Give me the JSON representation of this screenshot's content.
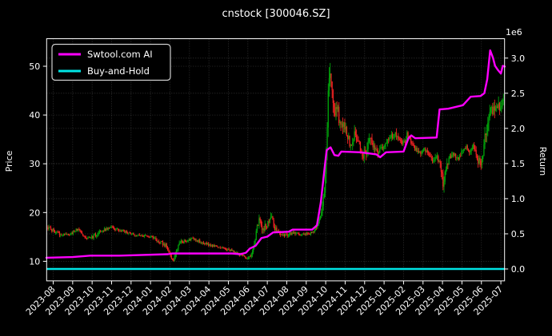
{
  "window": {
    "title": "cnstock [300046.SZ]"
  },
  "chart_data": {
    "type": "candlestick",
    "title": "cnstock [300046.SZ]",
    "ylabel_left": "Price",
    "ylabel_right": "Return",
    "right_axis_offset_text": "1e6",
    "x_tick_labels": [
      "2023-08",
      "2023-09",
      "2023-10",
      "2023-11",
      "2023-12",
      "2024-01",
      "2024-02",
      "2024-03",
      "2024-04",
      "2024-05",
      "2024-06",
      "2024-07",
      "2024-08",
      "2024-09",
      "2024-10",
      "2024-11",
      "2024-12",
      "2025-01",
      "2025-02",
      "2025-03",
      "2025-04",
      "2025-05",
      "2025-06",
      "2025-07"
    ],
    "price_ticks": [
      10,
      20,
      30,
      40,
      50
    ],
    "return_ticks_1e6": [
      0.0,
      0.5,
      1.0,
      1.5,
      2.0,
      2.5,
      3.0
    ],
    "price_ylim": [
      6.0,
      55.6
    ],
    "return_ylim_1e6": [
      -0.17,
      3.28
    ],
    "grid": true,
    "legend_position": "upper left",
    "candle_colors": {
      "up": "#00a30a",
      "down": "#ee2222"
    },
    "series": [
      {
        "name": "Swtool.com AI",
        "color": "#ff00ff",
        "axis": "return_1e6",
        "points": [
          [
            -0.35,
            0.16
          ],
          [
            1.0,
            0.17
          ],
          [
            1.9,
            0.19
          ],
          [
            3.4,
            0.19
          ],
          [
            5.9,
            0.21
          ],
          [
            6.1,
            0.22
          ],
          [
            9.2,
            0.22
          ],
          [
            9.6,
            0.21
          ],
          [
            9.9,
            0.23
          ],
          [
            10.1,
            0.29
          ],
          [
            10.4,
            0.33
          ],
          [
            10.7,
            0.44
          ],
          [
            11.0,
            0.46
          ],
          [
            11.3,
            0.52
          ],
          [
            12.1,
            0.53
          ],
          [
            12.3,
            0.56
          ],
          [
            13.3,
            0.56
          ],
          [
            13.55,
            0.62
          ],
          [
            13.75,
            0.95
          ],
          [
            13.95,
            1.45
          ],
          [
            14.05,
            1.69
          ],
          [
            14.25,
            1.73
          ],
          [
            14.45,
            1.62
          ],
          [
            14.65,
            1.61
          ],
          [
            14.8,
            1.67
          ],
          [
            15.8,
            1.66
          ],
          [
            16.6,
            1.63
          ],
          [
            16.8,
            1.59
          ],
          [
            17.1,
            1.66
          ],
          [
            18.0,
            1.67
          ],
          [
            18.25,
            1.86
          ],
          [
            18.4,
            1.9
          ],
          [
            18.6,
            1.86
          ],
          [
            19.7,
            1.87
          ],
          [
            19.85,
            2.27
          ],
          [
            20.3,
            2.28
          ],
          [
            21.05,
            2.33
          ],
          [
            21.45,
            2.45
          ],
          [
            21.95,
            2.46
          ],
          [
            22.15,
            2.5
          ],
          [
            22.3,
            2.7
          ],
          [
            22.45,
            3.11
          ],
          [
            22.6,
            3.0
          ],
          [
            22.7,
            2.89
          ],
          [
            22.85,
            2.83
          ],
          [
            23.0,
            2.78
          ],
          [
            23.1,
            2.89
          ],
          [
            23.2,
            2.88
          ]
        ]
      },
      {
        "name": "Buy-and-Hold",
        "color": "#00e5e5",
        "axis": "return_1e6",
        "points": [
          [
            -0.35,
            0.0
          ],
          [
            23.2,
            0.0
          ]
        ]
      }
    ],
    "price_close_keypoints": [
      [
        -0.3,
        17.0,
        0.9
      ],
      [
        0.0,
        16.3,
        0.8
      ],
      [
        0.3,
        15.6,
        0.7
      ],
      [
        0.7,
        15.3,
        0.7
      ],
      [
        1.0,
        16.0,
        0.8
      ],
      [
        1.3,
        16.6,
        0.7
      ],
      [
        1.6,
        15.2,
        0.7
      ],
      [
        1.9,
        14.8,
        0.7
      ],
      [
        2.3,
        15.6,
        0.8
      ],
      [
        2.6,
        16.4,
        0.8
      ],
      [
        3.0,
        16.9,
        0.7
      ],
      [
        3.4,
        16.3,
        0.6
      ],
      [
        3.8,
        16.0,
        0.6
      ],
      [
        4.2,
        15.5,
        0.6
      ],
      [
        4.6,
        15.2,
        0.5
      ],
      [
        5.0,
        15.0,
        0.6
      ],
      [
        5.4,
        14.2,
        0.7
      ],
      [
        5.8,
        13.2,
        0.8
      ],
      [
        6.0,
        11.0,
        1.2
      ],
      [
        6.15,
        9.8,
        1.0
      ],
      [
        6.3,
        12.0,
        1.3
      ],
      [
        6.5,
        13.8,
        0.9
      ],
      [
        6.8,
        14.2,
        0.7
      ],
      [
        7.2,
        14.6,
        0.7
      ],
      [
        7.6,
        14.0,
        0.6
      ],
      [
        8.0,
        13.4,
        0.6
      ],
      [
        8.4,
        13.0,
        0.5
      ],
      [
        8.8,
        12.6,
        0.5
      ],
      [
        9.2,
        12.2,
        0.5
      ],
      [
        9.5,
        11.6,
        0.6
      ],
      [
        9.8,
        11.0,
        0.6
      ],
      [
        10.0,
        10.5,
        0.5
      ],
      [
        10.2,
        11.5,
        1.0
      ],
      [
        10.45,
        16.0,
        2.0
      ],
      [
        10.6,
        19.5,
        1.8
      ],
      [
        10.75,
        16.5,
        1.5
      ],
      [
        11.0,
        17.5,
        1.5
      ],
      [
        11.2,
        19.0,
        1.6
      ],
      [
        11.4,
        16.5,
        1.2
      ],
      [
        11.7,
        15.5,
        0.9
      ],
      [
        12.0,
        15.5,
        0.8
      ],
      [
        12.4,
        16.0,
        0.9
      ],
      [
        12.7,
        15.3,
        0.7
      ],
      [
        13.0,
        15.6,
        0.6
      ],
      [
        13.3,
        15.8,
        0.8
      ],
      [
        13.6,
        17.5,
        1.2
      ],
      [
        13.8,
        20.0,
        1.5
      ],
      [
        13.95,
        26.0,
        3.0
      ],
      [
        14.1,
        40.0,
        5.0
      ],
      [
        14.2,
        50.0,
        4.0
      ],
      [
        14.3,
        46.0,
        4.5
      ],
      [
        14.45,
        40.0,
        3.5
      ],
      [
        14.6,
        42.0,
        3.0
      ],
      [
        14.75,
        37.0,
        2.5
      ],
      [
        14.9,
        39.0,
        2.8
      ],
      [
        15.1,
        36.0,
        2.2
      ],
      [
        15.3,
        33.5,
        2.0
      ],
      [
        15.5,
        36.5,
        2.5
      ],
      [
        15.7,
        34.0,
        2.0
      ],
      [
        15.9,
        31.5,
        1.8
      ],
      [
        16.1,
        33.0,
        2.5
      ],
      [
        16.3,
        36.5,
        2.8
      ],
      [
        16.5,
        33.0,
        1.8
      ],
      [
        16.7,
        31.8,
        1.5
      ],
      [
        16.9,
        33.5,
        1.5
      ],
      [
        17.1,
        34.5,
        1.5
      ],
      [
        17.3,
        35.5,
        1.6
      ],
      [
        17.6,
        36.0,
        1.5
      ],
      [
        17.8,
        34.5,
        1.4
      ],
      [
        18.0,
        34.0,
        1.3
      ],
      [
        18.2,
        36.0,
        1.5
      ],
      [
        18.4,
        34.0,
        1.3
      ],
      [
        18.6,
        33.0,
        1.2
      ],
      [
        18.8,
        32.0,
        1.2
      ],
      [
        19.0,
        33.0,
        1.2
      ],
      [
        19.3,
        32.0,
        1.2
      ],
      [
        19.5,
        30.5,
        1.3
      ],
      [
        19.7,
        31.5,
        1.5
      ],
      [
        19.9,
        29.5,
        2.0
      ],
      [
        20.05,
        25.5,
        2.5
      ],
      [
        20.2,
        30.0,
        2.0
      ],
      [
        20.4,
        31.5,
        1.3
      ],
      [
        20.6,
        32.0,
        1.2
      ],
      [
        20.8,
        31.0,
        1.2
      ],
      [
        21.0,
        32.5,
        1.3
      ],
      [
        21.2,
        33.5,
        1.4
      ],
      [
        21.4,
        32.5,
        1.3
      ],
      [
        21.6,
        34.0,
        1.5
      ],
      [
        21.8,
        31.0,
        2.0
      ],
      [
        21.95,
        30.0,
        2.5
      ],
      [
        22.1,
        33.0,
        2.5
      ],
      [
        22.3,
        38.0,
        3.0
      ],
      [
        22.5,
        43.0,
        3.5
      ],
      [
        22.65,
        40.0,
        3.0
      ],
      [
        22.8,
        42.5,
        2.5
      ],
      [
        23.0,
        41.5,
        2.5
      ],
      [
        23.15,
        44.0,
        2.5
      ]
    ]
  }
}
